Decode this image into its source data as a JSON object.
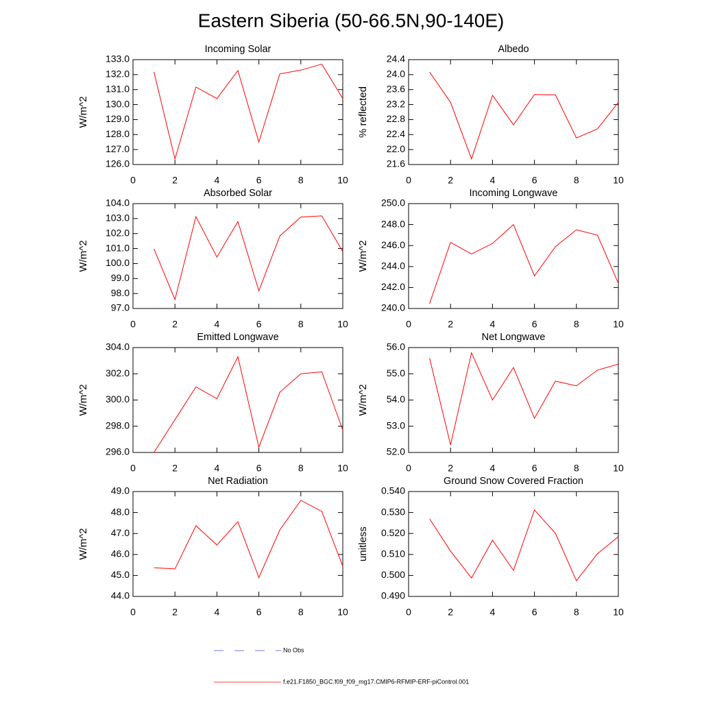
{
  "title": "Eastern Siberia (50-66.5N,90-140E)",
  "legend": [
    {
      "name": "No Obs",
      "color": "#3c4fc8",
      "dash": true
    },
    {
      "name": "f.e21.F1850_BGC.f09_f09_mg17.CMIP6-RFMIP-ERF-piControl.001",
      "color": "#ff0000",
      "dash": false
    }
  ],
  "chart_data": [
    {
      "type": "line",
      "title": "Incoming Solar",
      "ylabel": "W/m^2",
      "color": "#ff0000",
      "x": [
        1,
        2,
        3,
        4,
        5,
        6,
        7,
        8,
        9,
        10
      ],
      "values": [
        132.18,
        126.37,
        131.17,
        130.4,
        132.27,
        127.5,
        132.05,
        132.3,
        132.7,
        130.4
      ],
      "xlim": [
        0,
        10
      ],
      "xticks": [
        0,
        2,
        4,
        6,
        8,
        10
      ],
      "ylim": [
        126,
        133
      ],
      "yticks": [
        {
          "value": 126,
          "label": "126.0"
        },
        {
          "value": 127,
          "label": "127.0"
        },
        {
          "value": 128,
          "label": "128.0"
        },
        {
          "value": 129,
          "label": "129.0"
        },
        {
          "value": 130,
          "label": "130.0"
        },
        {
          "value": 131,
          "label": "131.0"
        },
        {
          "value": 132,
          "label": "132.0"
        },
        {
          "value": 133,
          "label": "133.0"
        }
      ]
    },
    {
      "type": "line",
      "title": "Albedo",
      "ylabel": "% reflected",
      "color": "#ff0000",
      "x": [
        1,
        2,
        3,
        4,
        5,
        6,
        7,
        8,
        9,
        10
      ],
      "values": [
        24.07,
        23.26,
        21.75,
        23.45,
        22.66,
        23.47,
        23.46,
        22.31,
        22.55,
        23.26
      ],
      "xlim": [
        0,
        10
      ],
      "xticks": [
        0,
        2,
        4,
        6,
        8,
        10
      ],
      "ylim": [
        21.6,
        24.4
      ],
      "yticks": [
        21.6,
        {
          "value": 22,
          "label": "22.0"
        },
        22.4,
        22.8,
        23.2,
        23.6,
        {
          "value": 24,
          "label": "24.0"
        },
        24.4
      ]
    },
    {
      "type": "line",
      "title": "Absorbed Solar",
      "ylabel": "W/m^2",
      "color": "#ff0000",
      "x": [
        1,
        2,
        3,
        4,
        5,
        6,
        7,
        8,
        9,
        10
      ],
      "values": [
        100.98,
        97.6,
        103.13,
        100.43,
        102.8,
        98.18,
        101.84,
        103.1,
        103.18,
        100.8
      ],
      "xlim": [
        0,
        10
      ],
      "xticks": [
        0,
        2,
        4,
        6,
        8,
        10
      ],
      "ylim": [
        97,
        104
      ],
      "yticks": [
        {
          "value": 97,
          "label": "97.0"
        },
        {
          "value": 98,
          "label": "98.0"
        },
        {
          "value": 99,
          "label": "99.0"
        },
        {
          "value": 100,
          "label": "100.0"
        },
        {
          "value": 101,
          "label": "101.0"
        },
        {
          "value": 102,
          "label": "102.0"
        },
        {
          "value": 103,
          "label": "103.0"
        },
        {
          "value": 104,
          "label": "104.0"
        }
      ]
    },
    {
      "type": "line",
      "title": "Incoming Longwave",
      "ylabel": "W/m^2",
      "color": "#ff0000",
      "x": [
        1,
        2,
        3,
        4,
        5,
        6,
        7,
        8,
        9,
        10
      ],
      "values": [
        240.46,
        246.3,
        245.2,
        246.2,
        248.0,
        243.1,
        245.9,
        247.5,
        247.0,
        242.4
      ],
      "xlim": [
        0,
        10
      ],
      "xticks": [
        0,
        2,
        4,
        6,
        8,
        10
      ],
      "ylim": [
        240,
        250
      ],
      "yticks": [
        {
          "value": 240,
          "label": "240.0"
        },
        {
          "value": 242,
          "label": "242.0"
        },
        {
          "value": 244,
          "label": "244.0"
        },
        {
          "value": 246,
          "label": "246.0"
        },
        {
          "value": 248,
          "label": "248.0"
        },
        {
          "value": 250,
          "label": "250.0"
        }
      ]
    },
    {
      "type": "line",
      "title": "Emitted Longwave",
      "ylabel": "W/m^2",
      "color": "#ff0000",
      "x": [
        1,
        2,
        3,
        4,
        5,
        6,
        7,
        8,
        9,
        10
      ],
      "values": [
        296.0,
        298.5,
        301.0,
        300.1,
        303.3,
        296.4,
        300.6,
        302.0,
        302.15,
        297.7
      ],
      "xlim": [
        0,
        10
      ],
      "xticks": [
        0,
        2,
        4,
        6,
        8,
        10
      ],
      "ylim": [
        296,
        304
      ],
      "yticks": [
        {
          "value": 296,
          "label": "296.0"
        },
        {
          "value": 298,
          "label": "298.0"
        },
        {
          "value": 300,
          "label": "300.0"
        },
        {
          "value": 302,
          "label": "302.0"
        },
        {
          "value": 304,
          "label": "304.0"
        }
      ]
    },
    {
      "type": "line",
      "title": "Net Longwave",
      "ylabel": "W/m^2",
      "color": "#ff0000",
      "x": [
        1,
        2,
        3,
        4,
        5,
        6,
        7,
        8,
        9,
        10
      ],
      "values": [
        55.6,
        52.29,
        55.8,
        54.0,
        55.24,
        53.3,
        54.72,
        54.54,
        55.14,
        55.37
      ],
      "xlim": [
        0,
        10
      ],
      "xticks": [
        0,
        2,
        4,
        6,
        8,
        10
      ],
      "ylim": [
        52,
        56
      ],
      "yticks": [
        {
          "value": 52,
          "label": "52.0"
        },
        {
          "value": 53,
          "label": "53.0"
        },
        {
          "value": 54,
          "label": "54.0"
        },
        {
          "value": 55,
          "label": "55.0"
        },
        {
          "value": 56,
          "label": "56.0"
        }
      ]
    },
    {
      "type": "line",
      "title": "Net Radiation",
      "ylabel": "W/m^2",
      "color": "#ff0000",
      "x": [
        1,
        2,
        3,
        4,
        5,
        6,
        7,
        8,
        9,
        10
      ],
      "values": [
        45.37,
        45.31,
        47.37,
        46.45,
        47.56,
        44.9,
        47.17,
        48.58,
        48.05,
        45.44
      ],
      "xlim": [
        0,
        10
      ],
      "xticks": [
        0,
        2,
        4,
        6,
        8,
        10
      ],
      "ylim": [
        44,
        49
      ],
      "yticks": [
        {
          "value": 44,
          "label": "44.0"
        },
        {
          "value": 45,
          "label": "45.0"
        },
        {
          "value": 46,
          "label": "46.0"
        },
        {
          "value": 47,
          "label": "47.0"
        },
        {
          "value": 48,
          "label": "48.0"
        },
        {
          "value": 49,
          "label": "49.0"
        }
      ]
    },
    {
      "type": "line",
      "title": "Ground Snow Covered Fraction",
      "ylabel": "unitless",
      "color": "#ff0000",
      "x": [
        1,
        2,
        3,
        4,
        5,
        6,
        7,
        8,
        9,
        10
      ],
      "values": [
        0.527,
        0.5116,
        0.4988,
        0.5168,
        0.5024,
        0.5312,
        0.5201,
        0.4975,
        0.5103,
        0.5185
      ],
      "xlim": [
        0,
        10
      ],
      "xticks": [
        0,
        2,
        4,
        6,
        8,
        10
      ],
      "ylim": [
        0.49,
        0.54
      ],
      "yticks": [
        {
          "value": 0.49,
          "label": "0.490"
        },
        {
          "value": 0.5,
          "label": "0.500"
        },
        {
          "value": 0.51,
          "label": "0.510"
        },
        {
          "value": 0.52,
          "label": "0.520"
        },
        {
          "value": 0.53,
          "label": "0.530"
        },
        {
          "value": 0.54,
          "label": "0.540"
        }
      ]
    }
  ]
}
